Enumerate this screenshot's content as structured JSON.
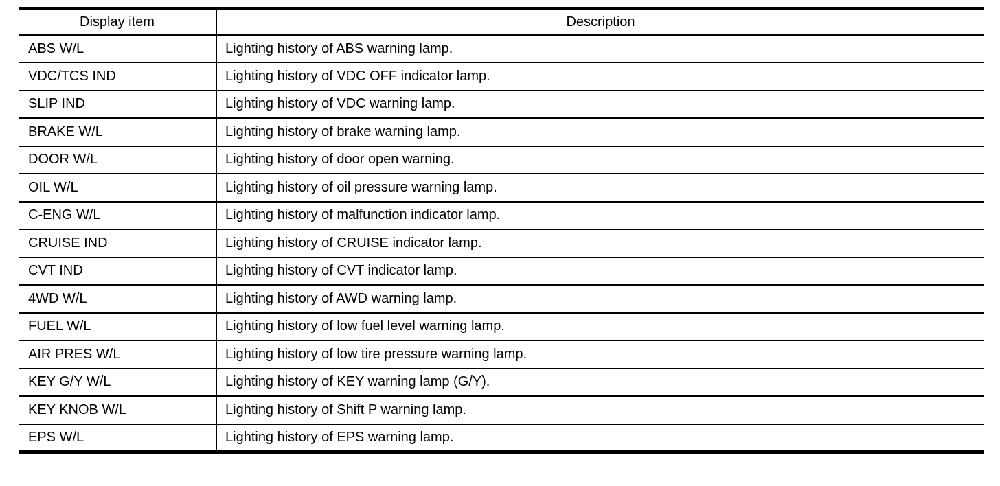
{
  "table": {
    "header": {
      "display_item": "Display item",
      "description": "Description"
    },
    "rows": [
      {
        "item": "ABS W/L",
        "description": "Lighting history of ABS warning lamp."
      },
      {
        "item": "VDC/TCS IND",
        "description": "Lighting history of VDC OFF indicator lamp."
      },
      {
        "item": "SLIP IND",
        "description": "Lighting history of VDC warning lamp."
      },
      {
        "item": "BRAKE W/L",
        "description": "Lighting history of brake warning lamp."
      },
      {
        "item": "DOOR W/L",
        "description": "Lighting history of door open warning."
      },
      {
        "item": "OIL W/L",
        "description": "Lighting history of oil pressure warning lamp."
      },
      {
        "item": "C-ENG W/L",
        "description": "Lighting history of malfunction indicator lamp."
      },
      {
        "item": "CRUISE IND",
        "description": "Lighting history of CRUISE indicator lamp."
      },
      {
        "item": "CVT IND",
        "description": "Lighting history of CVT indicator lamp."
      },
      {
        "item": "4WD W/L",
        "description": "Lighting history of AWD warning lamp."
      },
      {
        "item": "FUEL W/L",
        "description": "Lighting history of low fuel level warning lamp."
      },
      {
        "item": "AIR PRES W/L",
        "description": "Lighting history of low tire pressure warning lamp."
      },
      {
        "item": "KEY G/Y W/L",
        "description": "Lighting history of KEY warning lamp (G/Y)."
      },
      {
        "item": "KEY KNOB W/L",
        "description": "Lighting history of Shift P warning lamp."
      },
      {
        "item": "EPS W/L",
        "description": "Lighting history of EPS warning lamp."
      }
    ],
    "colors": {
      "border": "#000000",
      "text": "#000000",
      "background": "#ffffff"
    }
  }
}
